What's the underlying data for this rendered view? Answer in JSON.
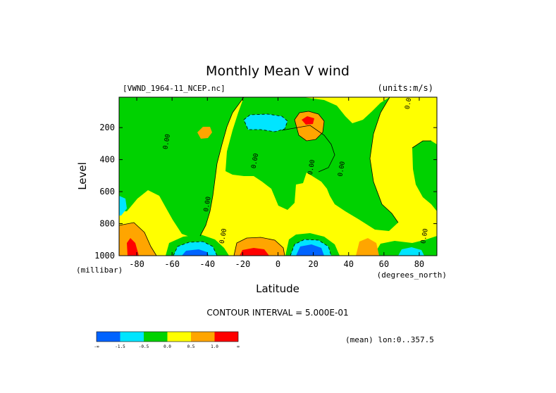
{
  "chart_data": {
    "type": "heatmap",
    "title": "Monthly Mean V wind",
    "dataset_label": "[VWND_1964-11_NCEP.nc]",
    "units_label": "(units:m/s)",
    "xlabel": "Latitude",
    "xunit_label": "(degrees_north)",
    "ylabel": "Level",
    "yunit_label": "(millibar)",
    "xlim": [
      -90,
      90
    ],
    "ylim": [
      1000,
      10
    ],
    "x_ticks": [
      -80,
      -60,
      -40,
      -20,
      0,
      20,
      40,
      60,
      80
    ],
    "y_ticks": [
      200,
      400,
      600,
      800,
      1000
    ],
    "contour_interval_text": "CONTOUR INTERVAL = 5.000E-01",
    "mean_text": "(mean) lon:0..357.5",
    "contour_labels": [
      {
        "text": "0.00",
        "x": -62,
        "y": 290
      },
      {
        "text": "0.00",
        "x": -39,
        "y": 680
      },
      {
        "text": "0.00",
        "x": -30,
        "y": 880
      },
      {
        "text": "0.00",
        "x": -12,
        "y": 410
      },
      {
        "text": "0.00",
        "x": 20,
        "y": 450
      },
      {
        "text": "0.00",
        "x": 37,
        "y": 460
      },
      {
        "text": "0.00",
        "x": 75,
        "y": 40
      },
      {
        "text": "0.00",
        "x": 84,
        "y": 880
      }
    ],
    "legend": {
      "colors": [
        "#0063ff",
        "#00e5ff",
        "#00d200",
        "#ffff00",
        "#ffa500",
        "#ff0000"
      ],
      "labels": [
        "-∞",
        "-1.5",
        "-0.5",
        "0.0",
        "0.5",
        "1.0",
        "∞"
      ]
    },
    "grid": false
  }
}
